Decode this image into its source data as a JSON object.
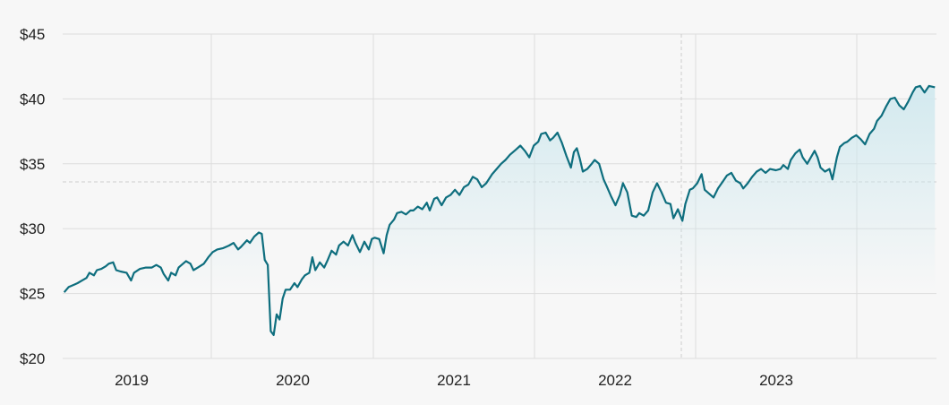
{
  "chart_data": {
    "type": "area",
    "title": "",
    "xlabel": "",
    "ylabel": "",
    "ylim": [
      20,
      45
    ],
    "xlim": [
      2018.62,
      2023.98
    ],
    "y_ticks": [
      {
        "value": 45,
        "label": "$45"
      },
      {
        "value": 40,
        "label": "$40"
      },
      {
        "value": 35,
        "label": "$35"
      },
      {
        "value": 30,
        "label": "$30"
      },
      {
        "value": 25,
        "label": "$25"
      },
      {
        "value": 20,
        "label": "$20"
      }
    ],
    "x_ticks": [
      {
        "value": 2019.5,
        "label": "2019"
      },
      {
        "value": 2020.5,
        "label": "2020"
      },
      {
        "value": 2021.5,
        "label": "2021"
      },
      {
        "value": 2022.5,
        "label": "2022"
      },
      {
        "value": 2023.5,
        "label": "2023"
      }
    ],
    "year_boundaries": [
      2019.5,
      2020.5,
      2021.5,
      2022.5,
      2023.5
    ],
    "reference_line": {
      "x": 2022.41,
      "y": 33.6
    },
    "grid": true,
    "colors": {
      "line": "#0e6e7e",
      "fill_top": "#cfe8ee",
      "grid": "#dddddd",
      "background": "#f7f7f7",
      "reference": "#cccccc"
    },
    "series": [
      {
        "values": [
          [
            2018.63,
            25.1
          ],
          [
            2018.66,
            25.5
          ],
          [
            2018.7,
            25.7
          ],
          [
            2018.72,
            25.8
          ],
          [
            2018.75,
            26.0
          ],
          [
            2018.78,
            26.2
          ],
          [
            2018.8,
            26.6
          ],
          [
            2018.83,
            26.4
          ],
          [
            2018.85,
            26.8
          ],
          [
            2018.88,
            26.9
          ],
          [
            2018.91,
            27.1
          ],
          [
            2018.93,
            27.3
          ],
          [
            2018.96,
            27.4
          ],
          [
            2018.98,
            26.8
          ],
          [
            2019.01,
            26.7
          ],
          [
            2019.05,
            26.6
          ],
          [
            2019.08,
            26.0
          ],
          [
            2019.1,
            26.6
          ],
          [
            2019.14,
            26.9
          ],
          [
            2019.18,
            27.0
          ],
          [
            2019.22,
            27.0
          ],
          [
            2019.25,
            27.2
          ],
          [
            2019.28,
            27.0
          ],
          [
            2019.3,
            26.5
          ],
          [
            2019.33,
            26.0
          ],
          [
            2019.35,
            26.6
          ],
          [
            2019.38,
            26.4
          ],
          [
            2019.4,
            27.0
          ],
          [
            2019.43,
            27.3
          ],
          [
            2019.45,
            27.5
          ],
          [
            2019.48,
            27.3
          ],
          [
            2019.5,
            26.8
          ],
          [
            2019.53,
            27.0
          ],
          [
            2019.57,
            27.3
          ],
          [
            2019.6,
            27.8
          ],
          [
            2019.63,
            28.2
          ],
          [
            2019.66,
            28.4
          ],
          [
            2019.7,
            28.5
          ],
          [
            2019.74,
            28.7
          ],
          [
            2019.77,
            28.9
          ],
          [
            2019.8,
            28.4
          ],
          [
            2019.82,
            28.6
          ],
          [
            2019.86,
            29.1
          ],
          [
            2019.88,
            28.9
          ],
          [
            2019.91,
            29.4
          ],
          [
            2019.94,
            29.7
          ],
          [
            2019.96,
            29.6
          ],
          [
            2019.98,
            27.6
          ],
          [
            2020.0,
            27.2
          ],
          [
            2020.02,
            22.1
          ],
          [
            2020.04,
            21.8
          ],
          [
            2020.06,
            23.4
          ],
          [
            2020.08,
            23.0
          ],
          [
            2020.1,
            24.6
          ],
          [
            2020.12,
            25.3
          ],
          [
            2020.15,
            25.3
          ],
          [
            2020.18,
            25.8
          ],
          [
            2020.2,
            25.5
          ],
          [
            2020.23,
            26.1
          ],
          [
            2020.25,
            26.4
          ],
          [
            2020.28,
            26.6
          ],
          [
            2020.3,
            27.8
          ],
          [
            2020.32,
            26.8
          ],
          [
            2020.35,
            27.4
          ],
          [
            2020.38,
            27.0
          ],
          [
            2020.4,
            27.5
          ],
          [
            2020.43,
            28.3
          ],
          [
            2020.46,
            28.0
          ],
          [
            2020.48,
            28.7
          ],
          [
            2020.51,
            29.0
          ],
          [
            2020.54,
            28.7
          ],
          [
            2020.57,
            29.5
          ],
          [
            2020.59,
            28.9
          ],
          [
            2020.62,
            28.2
          ],
          [
            2020.65,
            29.0
          ],
          [
            2020.68,
            28.4
          ],
          [
            2020.7,
            29.2
          ],
          [
            2020.72,
            29.3
          ],
          [
            2020.75,
            29.2
          ],
          [
            2020.78,
            28.1
          ],
          [
            2020.8,
            29.5
          ],
          [
            2020.82,
            30.3
          ],
          [
            2020.85,
            30.7
          ],
          [
            2020.87,
            31.2
          ],
          [
            2020.9,
            31.3
          ],
          [
            2020.93,
            31.1
          ],
          [
            2020.96,
            31.4
          ],
          [
            2020.98,
            31.4
          ],
          [
            2021.01,
            31.7
          ],
          [
            2021.04,
            31.5
          ],
          [
            2021.07,
            32.0
          ],
          [
            2021.09,
            31.4
          ],
          [
            2021.12,
            32.3
          ],
          [
            2021.14,
            32.4
          ],
          [
            2021.17,
            31.8
          ],
          [
            2021.2,
            32.4
          ],
          [
            2021.23,
            32.6
          ],
          [
            2021.26,
            33.0
          ],
          [
            2021.29,
            32.6
          ],
          [
            2021.32,
            33.2
          ],
          [
            2021.35,
            33.4
          ],
          [
            2021.38,
            34.0
          ],
          [
            2021.41,
            33.8
          ],
          [
            2021.44,
            33.2
          ],
          [
            2021.47,
            33.5
          ],
          [
            2021.51,
            34.2
          ],
          [
            2021.54,
            34.6
          ],
          [
            2021.57,
            35.0
          ],
          [
            2021.6,
            35.3
          ],
          [
            2021.63,
            35.7
          ],
          [
            2021.67,
            36.1
          ],
          [
            2021.7,
            36.4
          ],
          [
            2021.73,
            36.0
          ],
          [
            2021.76,
            35.5
          ],
          [
            2021.79,
            36.4
          ],
          [
            2021.82,
            36.7
          ],
          [
            2021.84,
            37.3
          ],
          [
            2021.87,
            37.4
          ],
          [
            2021.9,
            36.8
          ],
          [
            2021.92,
            37.0
          ],
          [
            2021.95,
            37.4
          ],
          [
            2021.98,
            36.6
          ],
          [
            2022.01,
            35.6
          ],
          [
            2022.04,
            34.7
          ],
          [
            2022.06,
            35.9
          ],
          [
            2022.08,
            36.2
          ],
          [
            2022.1,
            35.4
          ],
          [
            2022.12,
            34.4
          ],
          [
            2022.15,
            34.6
          ],
          [
            2022.18,
            35.0
          ],
          [
            2022.2,
            35.3
          ],
          [
            2022.23,
            35.0
          ],
          [
            2022.26,
            33.8
          ],
          [
            2022.28,
            33.3
          ],
          [
            2022.31,
            32.5
          ],
          [
            2022.34,
            31.8
          ],
          [
            2022.37,
            32.6
          ],
          [
            2022.39,
            33.5
          ],
          [
            2022.42,
            32.8
          ],
          [
            2022.45,
            31.0
          ],
          [
            2022.48,
            30.9
          ],
          [
            2022.5,
            31.2
          ],
          [
            2022.53,
            31.0
          ],
          [
            2022.56,
            31.4
          ],
          [
            2022.59,
            32.8
          ],
          [
            2022.62,
            33.5
          ],
          [
            2022.65,
            32.8
          ],
          [
            2022.68,
            32.0
          ],
          [
            2022.71,
            31.9
          ],
          [
            2022.73,
            30.8
          ],
          [
            2022.76,
            31.5
          ],
          [
            2022.79,
            30.6
          ],
          [
            2022.81,
            31.9
          ],
          [
            2022.84,
            33.0
          ],
          [
            2022.86,
            33.1
          ],
          [
            2022.89,
            33.5
          ],
          [
            2022.92,
            34.2
          ],
          [
            2022.94,
            33.0
          ],
          [
            2022.97,
            32.7
          ],
          [
            2023.0,
            32.4
          ],
          [
            2023.03,
            33.1
          ],
          [
            2023.06,
            33.6
          ],
          [
            2023.09,
            34.1
          ],
          [
            2023.12,
            34.3
          ],
          [
            2023.15,
            33.7
          ],
          [
            2023.18,
            33.5
          ],
          [
            2023.2,
            33.1
          ],
          [
            2023.23,
            33.5
          ],
          [
            2023.26,
            34.0
          ],
          [
            2023.29,
            34.4
          ],
          [
            2023.32,
            34.6
          ],
          [
            2023.35,
            34.3
          ],
          [
            2023.38,
            34.6
          ],
          [
            2023.42,
            34.5
          ],
          [
            2023.45,
            34.6
          ],
          [
            2023.47,
            34.9
          ],
          [
            2023.5,
            34.6
          ],
          [
            2023.52,
            35.3
          ],
          [
            2023.55,
            35.8
          ],
          [
            2023.58,
            36.1
          ],
          [
            2023.6,
            35.5
          ],
          [
            2023.63,
            35.0
          ],
          [
            2023.66,
            35.6
          ],
          [
            2023.68,
            36.0
          ],
          [
            2023.7,
            35.5
          ],
          [
            2023.72,
            34.7
          ],
          [
            2023.75,
            34.4
          ],
          [
            2023.78,
            34.6
          ],
          [
            2023.8,
            33.8
          ],
          [
            2023.83,
            35.5
          ],
          [
            2023.85,
            36.3
          ],
          [
            2023.88,
            36.6
          ],
          [
            2023.9,
            36.7
          ],
          [
            2023.93,
            37.0
          ],
          [
            2023.96,
            37.2
          ],
          [
            2023.99,
            36.9
          ],
          [
            2024.02,
            36.5
          ],
          [
            2024.05,
            37.3
          ],
          [
            2024.08,
            37.7
          ],
          [
            2024.1,
            38.3
          ],
          [
            2024.13,
            38.7
          ],
          [
            2024.16,
            39.4
          ],
          [
            2024.19,
            40.0
          ],
          [
            2024.22,
            40.1
          ],
          [
            2024.25,
            39.5
          ],
          [
            2024.28,
            39.2
          ],
          [
            2024.31,
            39.8
          ],
          [
            2024.34,
            40.5
          ],
          [
            2024.36,
            40.9
          ],
          [
            2024.39,
            41.0
          ],
          [
            2024.42,
            40.5
          ],
          [
            2024.45,
            41.0
          ],
          [
            2024.49,
            40.9
          ]
        ]
      }
    ]
  }
}
